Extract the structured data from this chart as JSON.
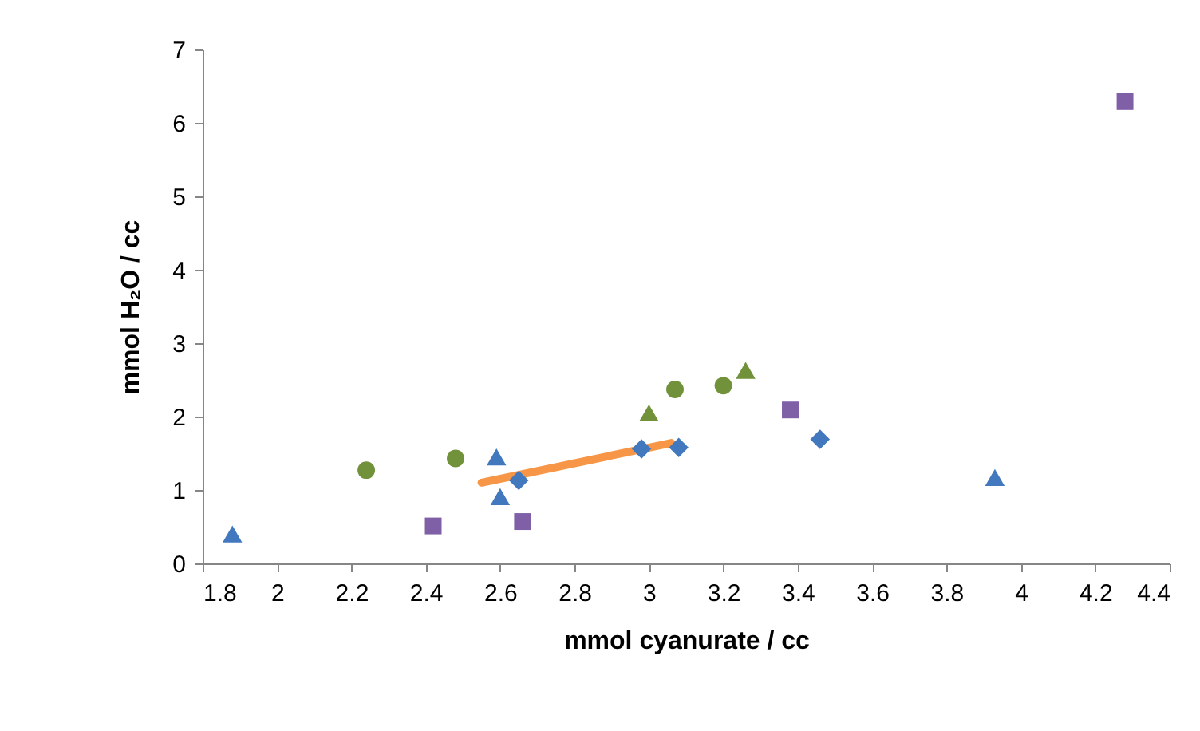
{
  "chart_data": {
    "type": "scatter",
    "xlabel": "mmol cyanurate  / cc",
    "ylabel": "mmol H₂O / cc",
    "xlim": [
      1.8,
      4.4
    ],
    "xticks": [
      1.8,
      2,
      2.2,
      2.4,
      2.6,
      2.8,
      3,
      3.2,
      3.4,
      3.6,
      3.8,
      4,
      4.2,
      4.4
    ],
    "ylim": [
      0,
      7
    ],
    "yticks": [
      0,
      1,
      2,
      3,
      4,
      5,
      6,
      7
    ],
    "grid": false,
    "series": [
      {
        "type": "line",
        "color": "#f79646",
        "marker": "none",
        "line_style": "solid",
        "x": [
          2.55,
          3.06
        ],
        "values": [
          1.1,
          1.64
        ]
      },
      {
        "color": "#4178be",
        "marker": "triangle",
        "x": [
          1.88,
          2.59,
          2.6,
          3.93
        ],
        "values": [
          0.4,
          1.45,
          0.91,
          1.17
        ]
      },
      {
        "color": "#4178be",
        "marker": "diamond",
        "x": [
          2.65,
          2.98,
          3.08,
          3.46
        ],
        "values": [
          1.13,
          1.56,
          1.58,
          1.69
        ]
      },
      {
        "color": "#71923a",
        "marker": "circle",
        "x": [
          2.24,
          2.48,
          3.07,
          3.2
        ],
        "values": [
          1.27,
          1.43,
          2.37,
          2.42
        ]
      },
      {
        "color": "#71923a",
        "marker": "triangle",
        "x": [
          3.0,
          3.26
        ],
        "values": [
          2.05,
          2.63
        ]
      },
      {
        "color": "#7f5fa6",
        "marker": "square",
        "x": [
          2.42,
          2.66,
          3.38,
          4.28
        ],
        "values": [
          0.51,
          0.57,
          2.09,
          6.29
        ]
      }
    ]
  }
}
